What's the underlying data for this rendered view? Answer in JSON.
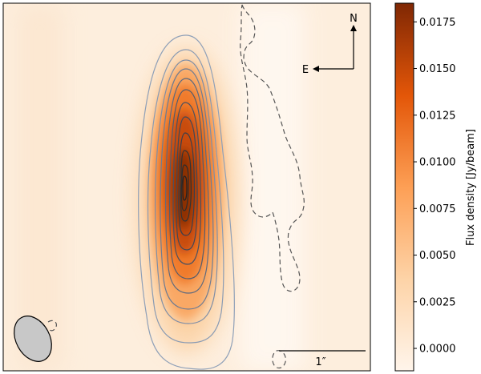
{
  "chart_data": {
    "type": "heatmap",
    "title": "",
    "xlabel": "",
    "ylabel": "",
    "colorbar": {
      "label": "Flux density [Jy/beam]",
      "range": [
        -0.0012,
        0.0185
      ],
      "ticks": [
        0.0,
        0.0025,
        0.005,
        0.0075,
        0.01,
        0.0125,
        0.015,
        0.0175
      ],
      "tick_labels": [
        "0.0000",
        "0.0025",
        "0.0050",
        "0.0075",
        "0.0100",
        "0.0125",
        "0.0150",
        "0.0175"
      ],
      "colormap": "Oranges"
    },
    "source": {
      "peak_flux": 0.0183,
      "shape": "elongated north-south",
      "contour_count_positive": 12,
      "negative_contour": "dashed"
    },
    "compass": {
      "north_label": "N",
      "east_label": "E"
    },
    "scalebar": {
      "label": "1″"
    },
    "beam": {
      "shape": "ellipse",
      "fill": "#c8c8c8"
    }
  },
  "colors": {
    "cmap_low": "#fff5eb",
    "cmap_mid": "#fd8d3c",
    "cmap_high": "#7f2704",
    "contour_outer": "#8fa0b8",
    "contour_inner": "#333333",
    "negative_contour": "#555555"
  }
}
